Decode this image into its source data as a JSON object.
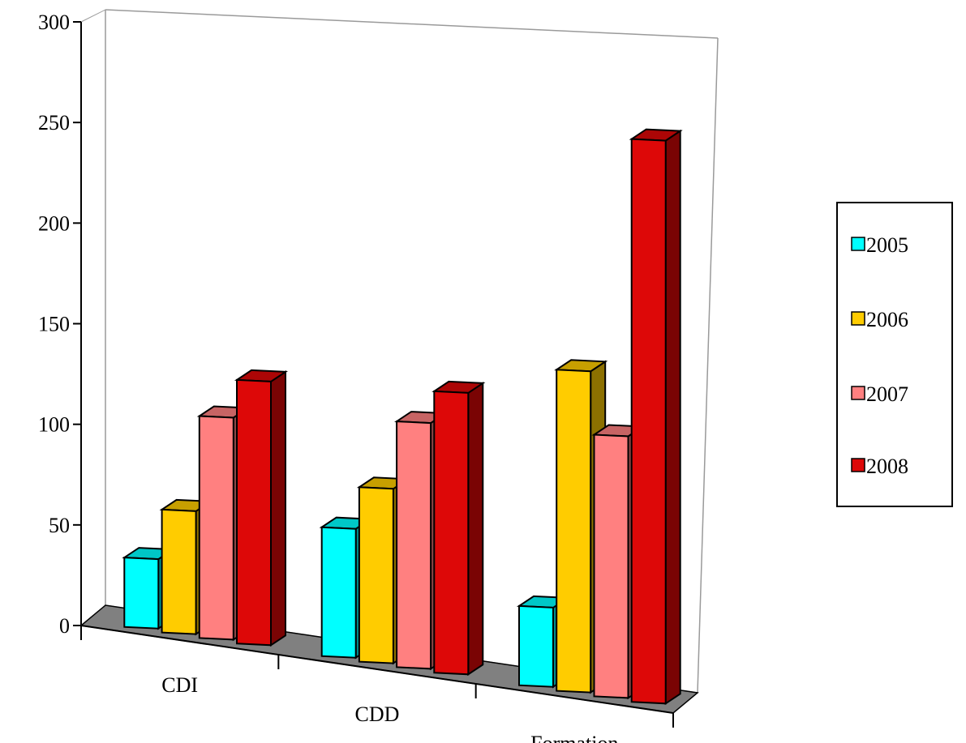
{
  "chart_data": {
    "type": "bar",
    "categories": [
      "CDI",
      "CDD",
      "Formation"
    ],
    "series": [
      {
        "name": "2005",
        "values": [
          35,
          65,
          40
        ],
        "color": "#00FFFF"
      },
      {
        "name": "2006",
        "values": [
          62,
          88,
          162
        ],
        "color": "#FFCC00"
      },
      {
        "name": "2007",
        "values": [
          112,
          124,
          132
        ],
        "color": "#FF8080"
      },
      {
        "name": "2008",
        "values": [
          133,
          142,
          284
        ],
        "color": "#DD0808"
      }
    ],
    "yticks": [
      "0",
      "50",
      "100",
      "150",
      "200",
      "250",
      "300"
    ],
    "ylim": [
      0,
      300
    ],
    "title": "",
    "xlabel": "",
    "ylabel": "",
    "legend_position": "right",
    "floor_color": "#808080",
    "three_d": true
  }
}
